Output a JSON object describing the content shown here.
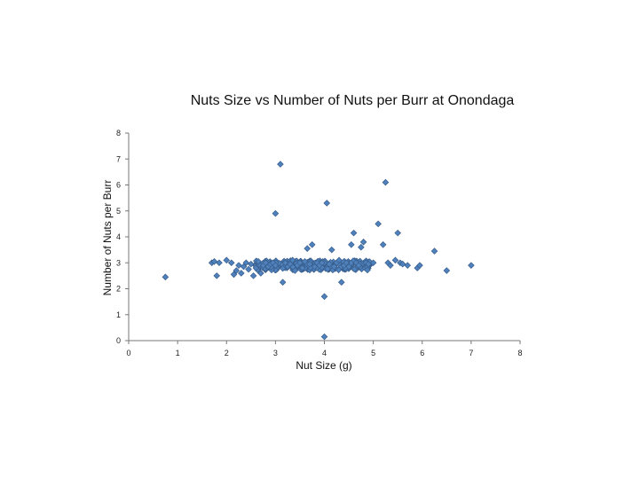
{
  "chart_data": {
    "type": "scatter",
    "title": "Nuts Size vs Number of Nuts per Burr at Onondaga",
    "xlabel": "Nut Size (g)",
    "ylabel": "Number of Nuts per Burr",
    "xlim": [
      0,
      8
    ],
    "ylim": [
      0,
      8
    ],
    "x_ticks": [
      0,
      1,
      2,
      3,
      4,
      5,
      6,
      7,
      8
    ],
    "y_ticks": [
      0,
      1,
      2,
      3,
      4,
      5,
      6,
      7,
      8
    ],
    "grid": false,
    "legend": "none",
    "marker": "diamond",
    "marker_color": "#4F81BD",
    "marker_edge": "#385D8A",
    "series": [
      {
        "points": [
          [
            0.75,
            2.45
          ],
          [
            1.7,
            3.0
          ],
          [
            1.75,
            3.05
          ],
          [
            1.8,
            2.5
          ],
          [
            1.85,
            3.0
          ],
          [
            2.0,
            3.1
          ],
          [
            2.1,
            3.0
          ],
          [
            2.15,
            2.55
          ],
          [
            2.2,
            2.7
          ],
          [
            2.25,
            2.9
          ],
          [
            2.3,
            2.6
          ],
          [
            2.35,
            2.85
          ],
          [
            2.4,
            3.0
          ],
          [
            2.45,
            2.75
          ],
          [
            2.5,
            2.95
          ],
          [
            2.55,
            2.5
          ],
          [
            2.6,
            2.8
          ],
          [
            2.65,
            3.05
          ],
          [
            2.7,
            2.6
          ],
          [
            2.75,
            2.9
          ],
          [
            2.8,
            3.0
          ],
          [
            2.85,
            2.85
          ],
          [
            2.9,
            2.95
          ],
          [
            2.95,
            3.0
          ],
          [
            3.0,
            2.9
          ],
          [
            3.0,
            4.9
          ],
          [
            3.1,
            6.8
          ],
          [
            3.15,
            2.25
          ],
          [
            3.2,
            3.0
          ],
          [
            3.25,
            2.85
          ],
          [
            3.3,
            2.95
          ],
          [
            3.35,
            3.1
          ],
          [
            3.4,
            2.7
          ],
          [
            3.45,
            2.9
          ],
          [
            3.5,
            3.0
          ],
          [
            3.55,
            2.8
          ],
          [
            3.6,
            3.05
          ],
          [
            3.65,
            3.55
          ],
          [
            3.7,
            2.95
          ],
          [
            3.75,
            3.7
          ],
          [
            3.8,
            2.85
          ],
          [
            3.85,
            3.0
          ],
          [
            3.9,
            2.9
          ],
          [
            3.95,
            3.0
          ],
          [
            4.0,
            1.7
          ],
          [
            4.0,
            0.15
          ],
          [
            4.05,
            5.3
          ],
          [
            4.1,
            2.95
          ],
          [
            4.15,
            3.5
          ],
          [
            4.2,
            2.85
          ],
          [
            4.25,
            3.0
          ],
          [
            4.3,
            3.1
          ],
          [
            4.35,
            2.25
          ],
          [
            4.4,
            2.9
          ],
          [
            4.45,
            3.0
          ],
          [
            4.5,
            2.85
          ],
          [
            4.55,
            3.7
          ],
          [
            4.6,
            4.15
          ],
          [
            4.65,
            3.0
          ],
          [
            4.7,
            2.9
          ],
          [
            4.75,
            3.6
          ],
          [
            4.8,
            3.8
          ],
          [
            4.85,
            3.0
          ],
          [
            4.9,
            2.95
          ],
          [
            5.0,
            3.0
          ],
          [
            5.1,
            4.5
          ],
          [
            5.2,
            3.7
          ],
          [
            5.25,
            6.1
          ],
          [
            5.3,
            3.0
          ],
          [
            5.35,
            2.9
          ],
          [
            5.45,
            3.1
          ],
          [
            5.5,
            4.15
          ],
          [
            5.55,
            3.0
          ],
          [
            5.6,
            2.95
          ],
          [
            5.7,
            2.9
          ],
          [
            5.9,
            2.8
          ],
          [
            5.95,
            2.9
          ],
          [
            6.25,
            3.45
          ],
          [
            6.5,
            2.7
          ],
          [
            7.0,
            2.9
          ]
        ]
      }
    ]
  }
}
